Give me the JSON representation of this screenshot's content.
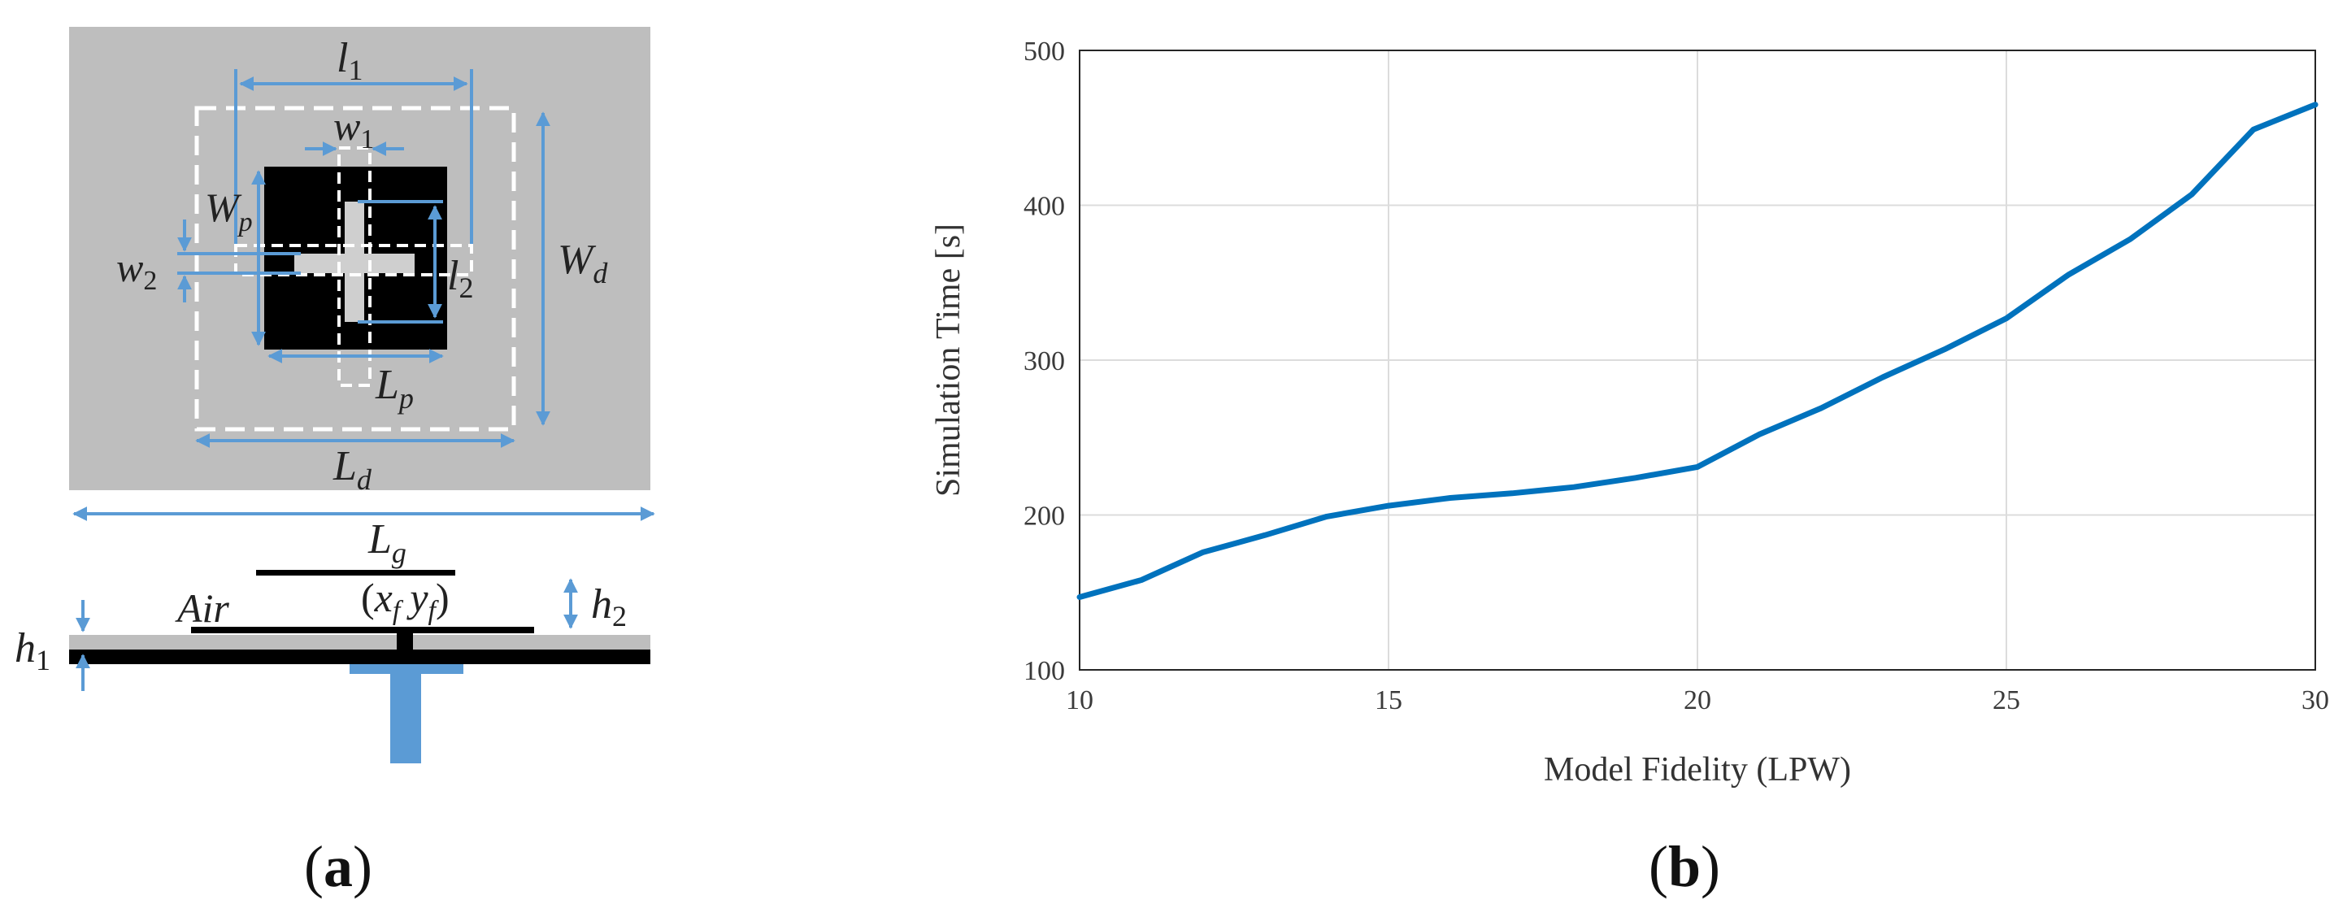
{
  "panel_a": {
    "label_open": "(",
    "label_letter": "a",
    "label_close": ")",
    "dims": {
      "l1": "l",
      "l1_sub": "1",
      "w1": "w",
      "w1_sub": "1",
      "Wp": "W",
      "Wp_sub": "p",
      "w2": "w",
      "w2_sub": "2",
      "l2": "l",
      "l2_sub": "2",
      "Wd": "W",
      "Wd_sub": "d",
      "Lp": "L",
      "Lp_sub": "p",
      "Ld": "L",
      "Ld_sub": "d",
      "Lg": "L",
      "Lg_sub": "g",
      "h1": "h",
      "h1_sub": "1",
      "h2": "h",
      "h2_sub": "2",
      "air": "Air",
      "feed_open": "(",
      "feed_x": "x",
      "feed_x_sub": "f",
      "feed_y": "y",
      "feed_y_sub": "f",
      "feed_close": ")"
    },
    "colors": {
      "substrate": "#bebebe",
      "patch": "#000000",
      "dimension": "#5b9bd5",
      "slot": "#cfcfcf"
    }
  },
  "panel_b": {
    "label_open": "(",
    "label_letter": "b",
    "label_close": ")"
  },
  "chart_data": {
    "type": "line",
    "xlabel": "Model Fidelity (LPW)",
    "ylabel": "Simulation Time [s]",
    "xlim": [
      10,
      30
    ],
    "ylim": [
      100,
      500
    ],
    "xticks": [
      "10",
      "15",
      "20",
      "25",
      "30"
    ],
    "yticks": [
      "100",
      "200",
      "300",
      "400",
      "500"
    ],
    "grid": true,
    "line_color": "#0072bd",
    "x": [
      10,
      11,
      12,
      13,
      14,
      15,
      16,
      17,
      18,
      19,
      20,
      21,
      22,
      23,
      24,
      25,
      26,
      27,
      28,
      29,
      30
    ],
    "y": [
      147,
      158,
      176,
      187,
      199,
      206,
      211,
      214,
      218,
      224,
      231,
      252,
      269,
      289,
      307,
      327,
      355,
      378,
      407,
      449,
      465
    ]
  }
}
